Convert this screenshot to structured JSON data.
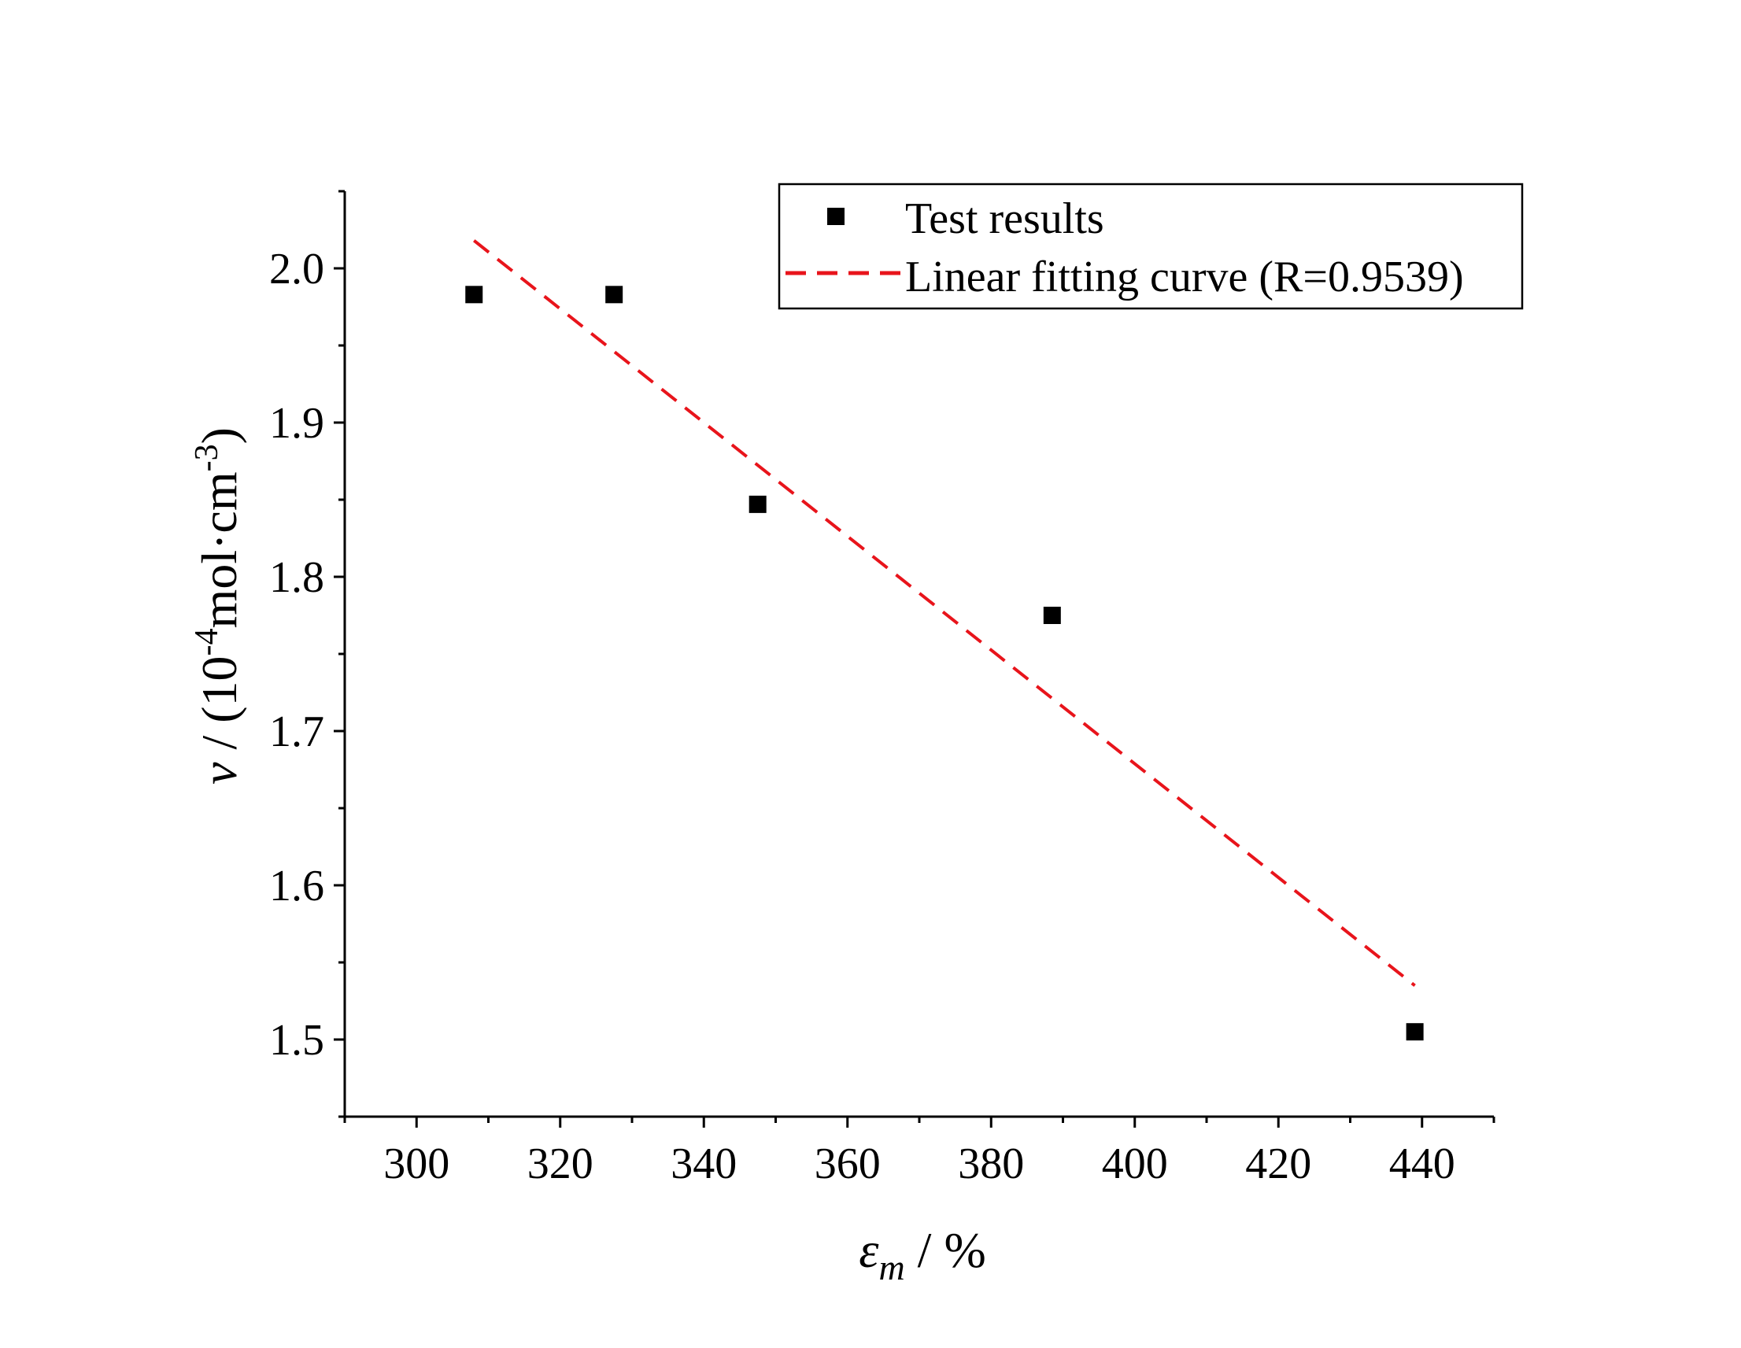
{
  "chart_data": {
    "type": "scatter",
    "title": "",
    "xlabel": {
      "symbol": "ε",
      "subscript": "m",
      "unit": " / %"
    },
    "ylabel": {
      "symbol": "ν",
      "prefix": " / (10",
      "exponent1": "-4",
      "mid": "mol·cm",
      "exponent2": "-3",
      "suffix": ")"
    },
    "xlim": [
      290,
      450
    ],
    "ylim": [
      1.45,
      2.05
    ],
    "x_ticks": [
      300,
      320,
      340,
      360,
      380,
      400,
      420,
      440
    ],
    "x_tick_labels": [
      "300",
      "320",
      "340",
      "360",
      "380",
      "400",
      "420",
      "440"
    ],
    "y_ticks": [
      1.5,
      1.6,
      1.7,
      1.8,
      1.9,
      2.0
    ],
    "y_tick_labels": [
      "1.5",
      "1.6",
      "1.7",
      "1.8",
      "1.9",
      "2.0"
    ],
    "grid": false,
    "legend_position": "top-right",
    "series": [
      {
        "name": "Test results",
        "kind": "scatter",
        "marker": "square",
        "color": "#000000",
        "x": [
          308,
          327.5,
          347.5,
          388.5,
          439
        ],
        "y": [
          1.983,
          1.983,
          1.847,
          1.775,
          1.505
        ]
      },
      {
        "name": "Linear fitting curve (R=0.9539)",
        "kind": "line",
        "style": "dashed",
        "color": "#e8141b",
        "x": [
          308,
          439
        ],
        "y": [
          2.018,
          1.535
        ]
      }
    ]
  }
}
